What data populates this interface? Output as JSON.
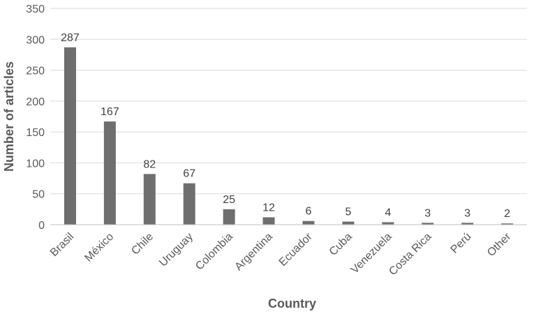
{
  "chart_data": {
    "type": "bar",
    "title": "",
    "xlabel": "Country",
    "ylabel": "Number of articles",
    "categories": [
      "Brasil",
      "México",
      "Chile",
      "Uruguay",
      "Colombia",
      "Argentina",
      "Ecuador",
      "Cuba",
      "Venezuela",
      "Costa Rica",
      "Perú",
      "Other"
    ],
    "values": [
      287,
      167,
      82,
      67,
      25,
      12,
      6,
      5,
      4,
      3,
      3,
      2
    ],
    "ylim": [
      0,
      350
    ],
    "yticks": [
      0,
      50,
      100,
      150,
      200,
      250,
      300,
      350
    ],
    "grid": true,
    "data_labels": true,
    "legend": "none",
    "colors": {
      "bar": "#6e6e6e",
      "grid": "#d9d9d9",
      "text": "#595959"
    }
  }
}
